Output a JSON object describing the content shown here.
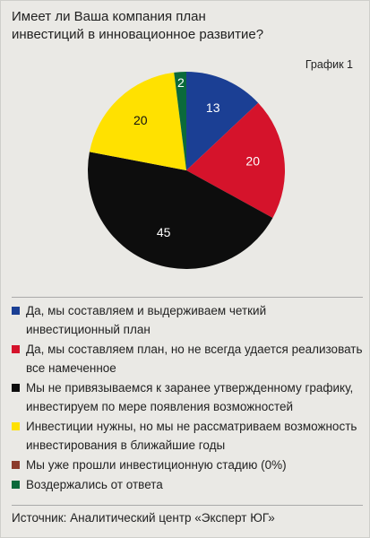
{
  "chart_data": {
    "type": "pie",
    "title": "Имеет ли Ваша компания план инвестиций в инновационное развитие?",
    "figure_label": "График 1",
    "categories": [
      "Да, мы составляем и выдерживаем четкий инвестиционный план",
      "Да, мы составляем план, но не всегда удается реализовать все намеченное",
      "Мы не привязываемся к заранее утвержденному графику, инвестируем по мере появления возможностей",
      "Инвестиции нужны, но мы не рассматриваем возможность инвестирования в ближайшие годы",
      "Мы уже прошли инвестиционную стадию (0%)",
      "Воздержались от ответа"
    ],
    "values": [
      13,
      20,
      45,
      20,
      0,
      2
    ],
    "colors": [
      "#1b3f94",
      "#d5132b",
      "#0d0d0d",
      "#ffe100",
      "#8c3b2b",
      "#0b6a3b"
    ],
    "source": "Источник: Аналитический центр «Эксперт ЮГ»"
  }
}
